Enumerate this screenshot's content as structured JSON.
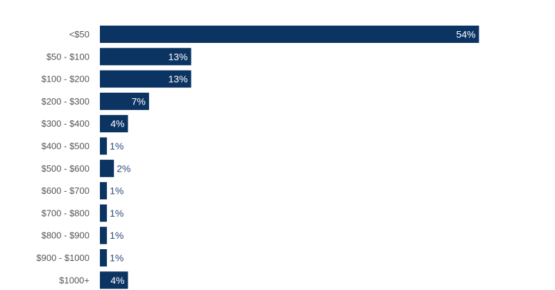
{
  "chart_data": {
    "type": "bar",
    "orientation": "horizontal",
    "categories": [
      "<$50",
      "$50 - $100",
      "$100 - $200",
      "$200 - $300",
      "$300 - $400",
      "$400 - $500",
      "$500 - $600",
      "$600 - $700",
      "$700 - $800",
      "$800 - $900",
      "$900 - $1000",
      "$1000+"
    ],
    "values": [
      54,
      13,
      13,
      7,
      4,
      1,
      2,
      1,
      1,
      1,
      1,
      4
    ],
    "value_labels": [
      "54%",
      "13%",
      "13%",
      "7%",
      "4%",
      "1%",
      "2%",
      "1%",
      "1%",
      "1%",
      "1%",
      "4%"
    ],
    "unit": "%",
    "grid": false,
    "legend": "none",
    "bar_color": "#0c3463",
    "inside_label_color": "#ffffff",
    "outside_label_color": "#2d4a7a"
  }
}
